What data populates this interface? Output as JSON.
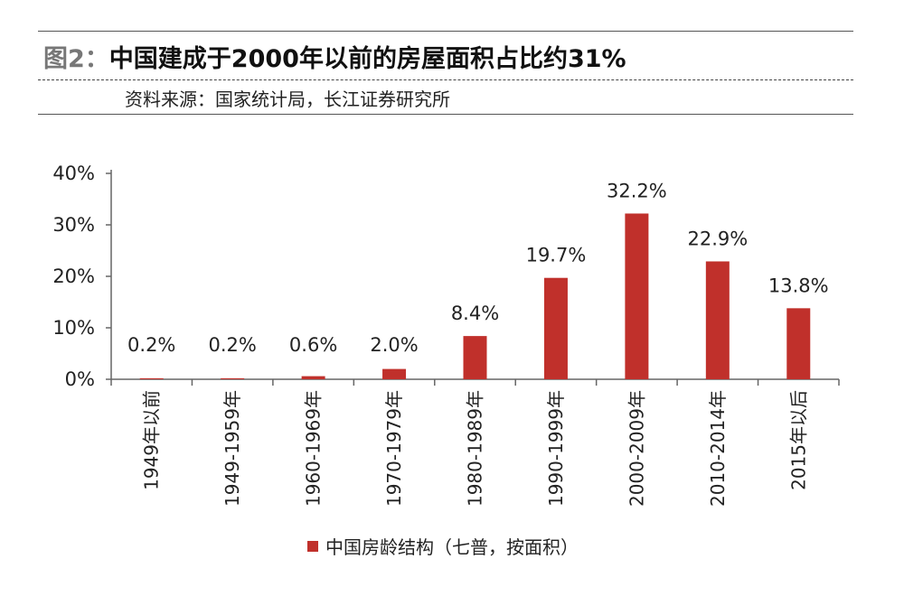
{
  "header": {
    "figure_label": "图2：",
    "title": "中国建成于2000年以前的房屋面积占比约31%",
    "source": "资料来源：国家统计局，长江证券研究所"
  },
  "colors": {
    "bar": "#c0302b",
    "axis": "#666666"
  },
  "chart_data": {
    "type": "bar",
    "title": "中国建成于2000年以前的房屋面积占比约31%",
    "xlabel": "",
    "ylabel": "",
    "categories": [
      "1949年以前",
      "1949-1959年",
      "1960-1969年",
      "1970-1979年",
      "1980-1989年",
      "1990-1999年",
      "2000-2009年",
      "2010-2014年",
      "2015年以后"
    ],
    "series": [
      {
        "name": "中国房龄结构（七普，按面积）",
        "values": [
          0.2,
          0.2,
          0.6,
          2.0,
          8.4,
          19.7,
          32.2,
          22.9,
          13.8
        ],
        "labels": [
          "0.2%",
          "0.2%",
          "0.6%",
          "2.0%",
          "8.4%",
          "19.7%",
          "32.2%",
          "22.9%",
          "13.8%"
        ]
      }
    ],
    "ylim": [
      0,
      40
    ],
    "yticks": [
      {
        "value": 0,
        "label": "0%"
      },
      {
        "value": 10,
        "label": "10%"
      },
      {
        "value": 20,
        "label": "20%"
      },
      {
        "value": 30,
        "label": "30%"
      },
      {
        "value": 40,
        "label": "40%"
      }
    ],
    "grid": false,
    "legend_position": "bottom"
  }
}
